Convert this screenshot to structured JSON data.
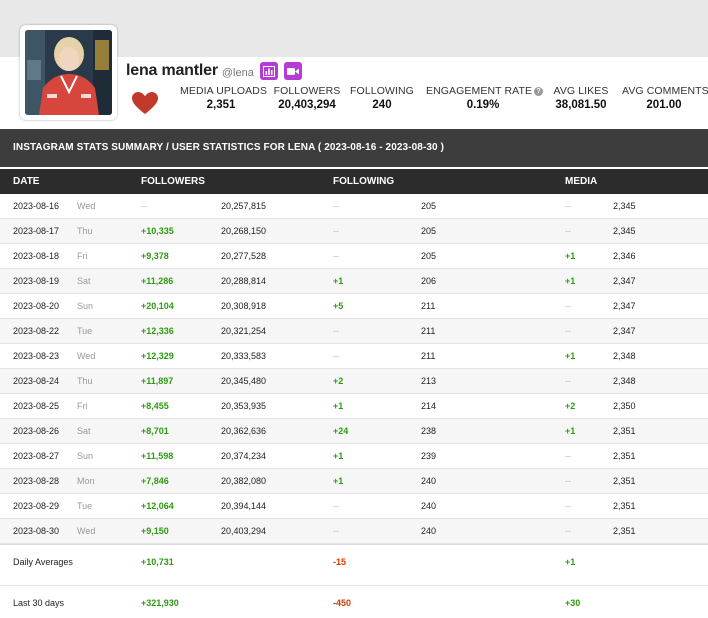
{
  "profile": {
    "name": "lena mantler",
    "handle": "@lena",
    "badges": [
      "chart-icon",
      "video-camera-icon"
    ],
    "accent_color": "#b43bd6",
    "heart_color": "#c0392b"
  },
  "stats": [
    {
      "label": "MEDIA UPLOADS",
      "value": "2,351"
    },
    {
      "label": "FOLLOWERS",
      "value": "20,403,294"
    },
    {
      "label": "FOLLOWING",
      "value": "240"
    },
    {
      "label": "ENGAGEMENT RATE",
      "value": "0.19%"
    },
    {
      "label": "AVG LIKES",
      "value": "38,081.50"
    },
    {
      "label": "AVG COMMENTS",
      "value": "201.00"
    }
  ],
  "summary_title": "INSTAGRAM STATS SUMMARY / USER STATISTICS FOR LENA ( 2023-08-16 - 2023-08-30 )",
  "columns": {
    "date": "DATE",
    "followers": "FOLLOWERS",
    "following": "FOLLOWING",
    "media": "MEDIA"
  },
  "rows": [
    {
      "date": "2023-08-16",
      "day": "Wed",
      "followers_delta": "--",
      "followers": "20,257,815",
      "following_delta": "--",
      "following": "205",
      "media_delta": "--",
      "media": "2,345"
    },
    {
      "date": "2023-08-17",
      "day": "Thu",
      "followers_delta": "+10,335",
      "followers": "20,268,150",
      "following_delta": "--",
      "following": "205",
      "media_delta": "--",
      "media": "2,345"
    },
    {
      "date": "2023-08-18",
      "day": "Fri",
      "followers_delta": "+9,378",
      "followers": "20,277,528",
      "following_delta": "--",
      "following": "205",
      "media_delta": "+1",
      "media": "2,346"
    },
    {
      "date": "2023-08-19",
      "day": "Sat",
      "followers_delta": "+11,286",
      "followers": "20,288,814",
      "following_delta": "+1",
      "following": "206",
      "media_delta": "+1",
      "media": "2,347"
    },
    {
      "date": "2023-08-20",
      "day": "Sun",
      "followers_delta": "+20,104",
      "followers": "20,308,918",
      "following_delta": "+5",
      "following": "211",
      "media_delta": "--",
      "media": "2,347"
    },
    {
      "date": "2023-08-22",
      "day": "Tue",
      "followers_delta": "+12,336",
      "followers": "20,321,254",
      "following_delta": "--",
      "following": "211",
      "media_delta": "--",
      "media": "2,347"
    },
    {
      "date": "2023-08-23",
      "day": "Wed",
      "followers_delta": "+12,329",
      "followers": "20,333,583",
      "following_delta": "--",
      "following": "211",
      "media_delta": "+1",
      "media": "2,348"
    },
    {
      "date": "2023-08-24",
      "day": "Thu",
      "followers_delta": "+11,897",
      "followers": "20,345,480",
      "following_delta": "+2",
      "following": "213",
      "media_delta": "--",
      "media": "2,348"
    },
    {
      "date": "2023-08-25",
      "day": "Fri",
      "followers_delta": "+8,455",
      "followers": "20,353,935",
      "following_delta": "+1",
      "following": "214",
      "media_delta": "+2",
      "media": "2,350"
    },
    {
      "date": "2023-08-26",
      "day": "Sat",
      "followers_delta": "+8,701",
      "followers": "20,362,636",
      "following_delta": "+24",
      "following": "238",
      "media_delta": "+1",
      "media": "2,351"
    },
    {
      "date": "2023-08-27",
      "day": "Sun",
      "followers_delta": "+11,598",
      "followers": "20,374,234",
      "following_delta": "+1",
      "following": "239",
      "media_delta": "--",
      "media": "2,351"
    },
    {
      "date": "2023-08-28",
      "day": "Mon",
      "followers_delta": "+7,846",
      "followers": "20,382,080",
      "following_delta": "+1",
      "following": "240",
      "media_delta": "--",
      "media": "2,351"
    },
    {
      "date": "2023-08-29",
      "day": "Tue",
      "followers_delta": "+12,064",
      "followers": "20,394,144",
      "following_delta": "--",
      "following": "240",
      "media_delta": "--",
      "media": "2,351"
    },
    {
      "date": "2023-08-30",
      "day": "Wed",
      "followers_delta": "+9,150",
      "followers": "20,403,294",
      "following_delta": "--",
      "following": "240",
      "media_delta": "--",
      "media": "2,351"
    }
  ],
  "daily_averages": {
    "label": "Daily Averages",
    "followers": "+10,731",
    "following": "-15",
    "media": "+1"
  },
  "last_30_days": {
    "label": "Last 30 days",
    "followers": "+321,930",
    "following": "-450",
    "media": "+30"
  }
}
